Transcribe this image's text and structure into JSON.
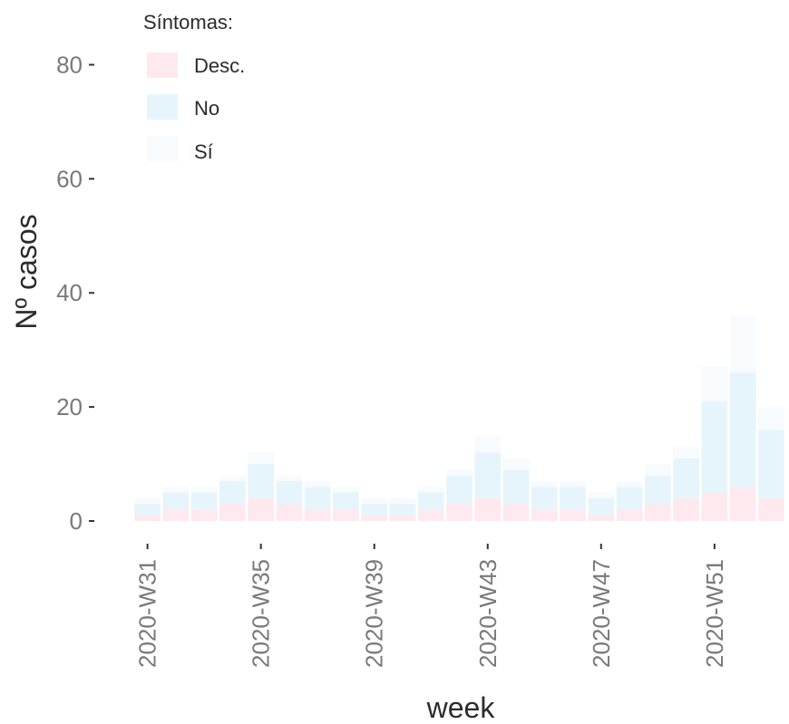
{
  "chart_data": {
    "type": "bar",
    "stacked": true,
    "xlabel": "week",
    "ylabel": "Nº casos",
    "ylim": [
      0,
      85
    ],
    "yticks": [
      0,
      20,
      40,
      60,
      80
    ],
    "grid": false,
    "legend": {
      "title": "Síntomas:",
      "position": "top-left",
      "entries": [
        "Desc.",
        "No",
        "Sí"
      ]
    },
    "categories": [
      "2020-W31",
      "2020-W32",
      "2020-W33",
      "2020-W34",
      "2020-W35",
      "2020-W36",
      "2020-W37",
      "2020-W38",
      "2020-W39",
      "2020-W40",
      "2020-W41",
      "2020-W42",
      "2020-W43",
      "2020-W44",
      "2020-W45",
      "2020-W46",
      "2020-W47",
      "2020-W48",
      "2020-W49",
      "2020-W50",
      "2020-W51",
      "2020-W52",
      "2020-W53"
    ],
    "xticks": [
      "2020-W31",
      "2020-W35",
      "2020-W39",
      "2020-W43",
      "2020-W47",
      "2020-W51"
    ],
    "series": [
      {
        "name": "Desc.",
        "color": "#fde9ee",
        "values": [
          1,
          2,
          2,
          3,
          4,
          3,
          2,
          2,
          1,
          1,
          2,
          3,
          4,
          3,
          2,
          2,
          1,
          2,
          3,
          4,
          5,
          6,
          4
        ]
      },
      {
        "name": "No",
        "color": "#e6f5fb",
        "values": [
          2,
          3,
          3,
          4,
          6,
          4,
          4,
          3,
          2,
          2,
          3,
          5,
          8,
          6,
          4,
          4,
          3,
          4,
          5,
          7,
          16,
          20,
          12
        ]
      },
      {
        "name": "Sí",
        "color": "#f7fbfd",
        "values": [
          1,
          1,
          1,
          1,
          2,
          1,
          1,
          1,
          1,
          1,
          1,
          1,
          3,
          2,
          1,
          1,
          1,
          1,
          2,
          2,
          6,
          10,
          4
        ]
      }
    ]
  }
}
